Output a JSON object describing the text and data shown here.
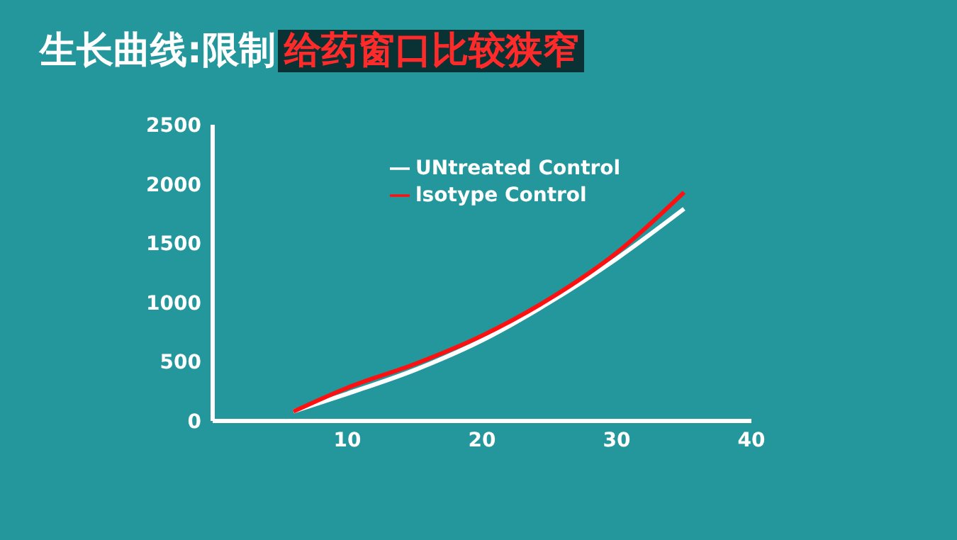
{
  "chart_data": {
    "type": "line",
    "title": "生长曲线:限制",
    "subtitle": "给药窗口比较狭窄",
    "x": [
      6,
      10,
      15,
      20,
      25,
      30,
      35
    ],
    "series": [
      {
        "name": "UNtreated Control",
        "color": "#ffffff",
        "values": [
          80,
          230,
          430,
          680,
          1000,
          1370,
          1790
        ]
      },
      {
        "name": "lsotype Control",
        "color": "#ff1010",
        "values": [
          80,
          280,
          480,
          720,
          1030,
          1420,
          1930
        ]
      }
    ],
    "xlim": [
      0,
      40
    ],
    "xticks": [
      10,
      20,
      30,
      40
    ],
    "ylim": [
      0,
      2500
    ],
    "yticks": [
      0,
      500,
      1000,
      1500,
      2000,
      2500
    ],
    "grid": false,
    "legend": "top left",
    "marker": "none",
    "line_style": "solid"
  }
}
